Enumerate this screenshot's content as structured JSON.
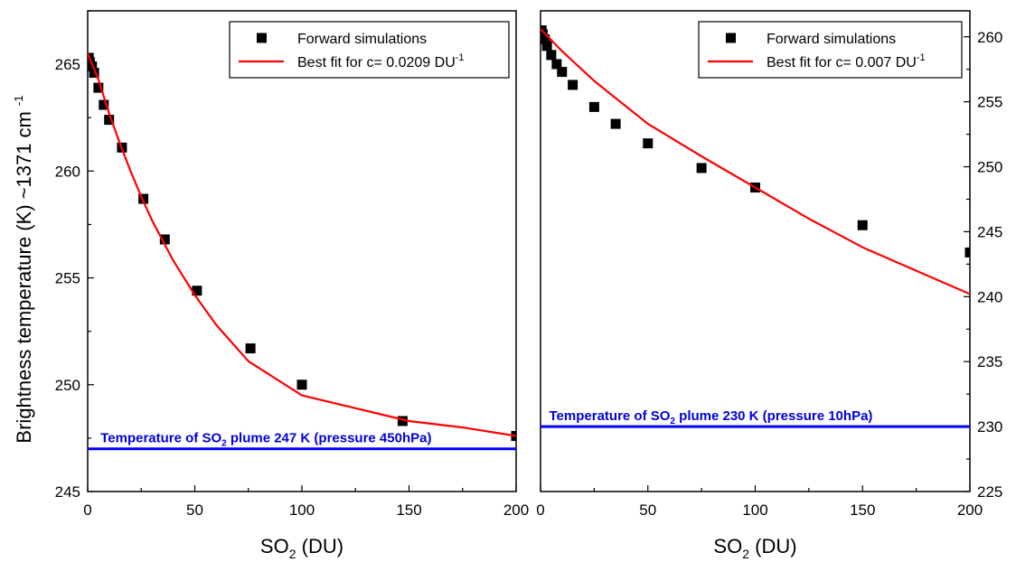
{
  "figure": {
    "ylabel": {
      "main": "Brightness temperature (K) ~1371 cm",
      "sup": "-1"
    }
  },
  "chart_data": [
    {
      "type": "scatter",
      "panel": "left",
      "xlabel": {
        "main": "SO",
        "sub": "2",
        "tail": " (DU)"
      },
      "xlim": [
        0,
        200
      ],
      "ylim": [
        245,
        267.5
      ],
      "y_axis_side": "left",
      "xticks": [
        0,
        50,
        100,
        150,
        200
      ],
      "yticks": [
        245,
        250,
        255,
        260,
        265
      ],
      "grid": false,
      "legend_position": "top-right",
      "series": [
        {
          "name": "Forward simulations",
          "kind": "markers",
          "marker": "square",
          "color": "#000000",
          "x": [
            0.5,
            1,
            2,
            3,
            5,
            7.5,
            10,
            16,
            26,
            36,
            51,
            76,
            100,
            147,
            200
          ],
          "y": [
            265.3,
            265.1,
            264.9,
            264.6,
            263.9,
            263.1,
            262.4,
            261.1,
            258.7,
            256.8,
            254.4,
            251.7,
            250.0,
            248.3,
            247.6
          ]
        },
        {
          "name": "Best fit for c= 0.0209 DU",
          "name_sup": "-1",
          "kind": "line",
          "color": "#ff0000",
          "x": [
            0,
            5,
            10,
            15,
            20,
            25,
            30,
            40,
            50,
            60,
            75,
            100,
            125,
            150,
            175,
            200
          ],
          "y": [
            265.5,
            264.3,
            262.7,
            261.3,
            260.0,
            258.8,
            257.7,
            255.8,
            254.2,
            252.8,
            251.1,
            249.5,
            248.9,
            248.3,
            248.0,
            247.6
          ]
        }
      ],
      "annotations": [
        {
          "kind": "hline",
          "y": 247,
          "color": "#0000ff",
          "label_prefix": "Temperature of SO",
          "label_sub": "2",
          "label_suffix": " plume 247 K (pressure 450hPa)",
          "label_x": 6
        }
      ]
    },
    {
      "type": "scatter",
      "panel": "right",
      "xlabel": {
        "main": "SO",
        "sub": "2",
        "tail": " (DU)"
      },
      "xlim": [
        0,
        200
      ],
      "ylim": [
        225,
        262
      ],
      "y_axis_side": "right",
      "xticks": [
        0,
        50,
        100,
        150,
        200
      ],
      "yticks": [
        225,
        230,
        235,
        240,
        245,
        250,
        255,
        260
      ],
      "grid": false,
      "legend_position": "top-right",
      "series": [
        {
          "name": "Forward simulations",
          "kind": "markers",
          "marker": "square",
          "color": "#000000",
          "x": [
            0.5,
            1,
            2,
            3,
            5,
            7.5,
            10,
            15,
            25,
            35,
            50,
            75,
            100,
            150,
            200
          ],
          "y": [
            260.5,
            260.2,
            259.8,
            259.3,
            258.6,
            257.9,
            257.3,
            256.3,
            254.6,
            253.3,
            251.8,
            249.9,
            248.4,
            245.5,
            243.4
          ]
        },
        {
          "name": "Best fit for c= 0.007 DU",
          "name_sup": "-1",
          "kind": "line",
          "color": "#ff0000",
          "x": [
            0,
            10,
            25,
            50,
            75,
            100,
            125,
            150,
            175,
            200
          ],
          "y": [
            260.6,
            258.9,
            256.6,
            253.3,
            250.8,
            248.4,
            246.0,
            243.8,
            242.0,
            240.2
          ]
        }
      ],
      "annotations": [
        {
          "kind": "hline",
          "y": 230,
          "color": "#0000ff",
          "label_prefix": "Temperature of SO",
          "label_sub": "2",
          "label_suffix": " plume 230 K (pressure 10hPa)",
          "label_x": 4
        }
      ]
    }
  ]
}
